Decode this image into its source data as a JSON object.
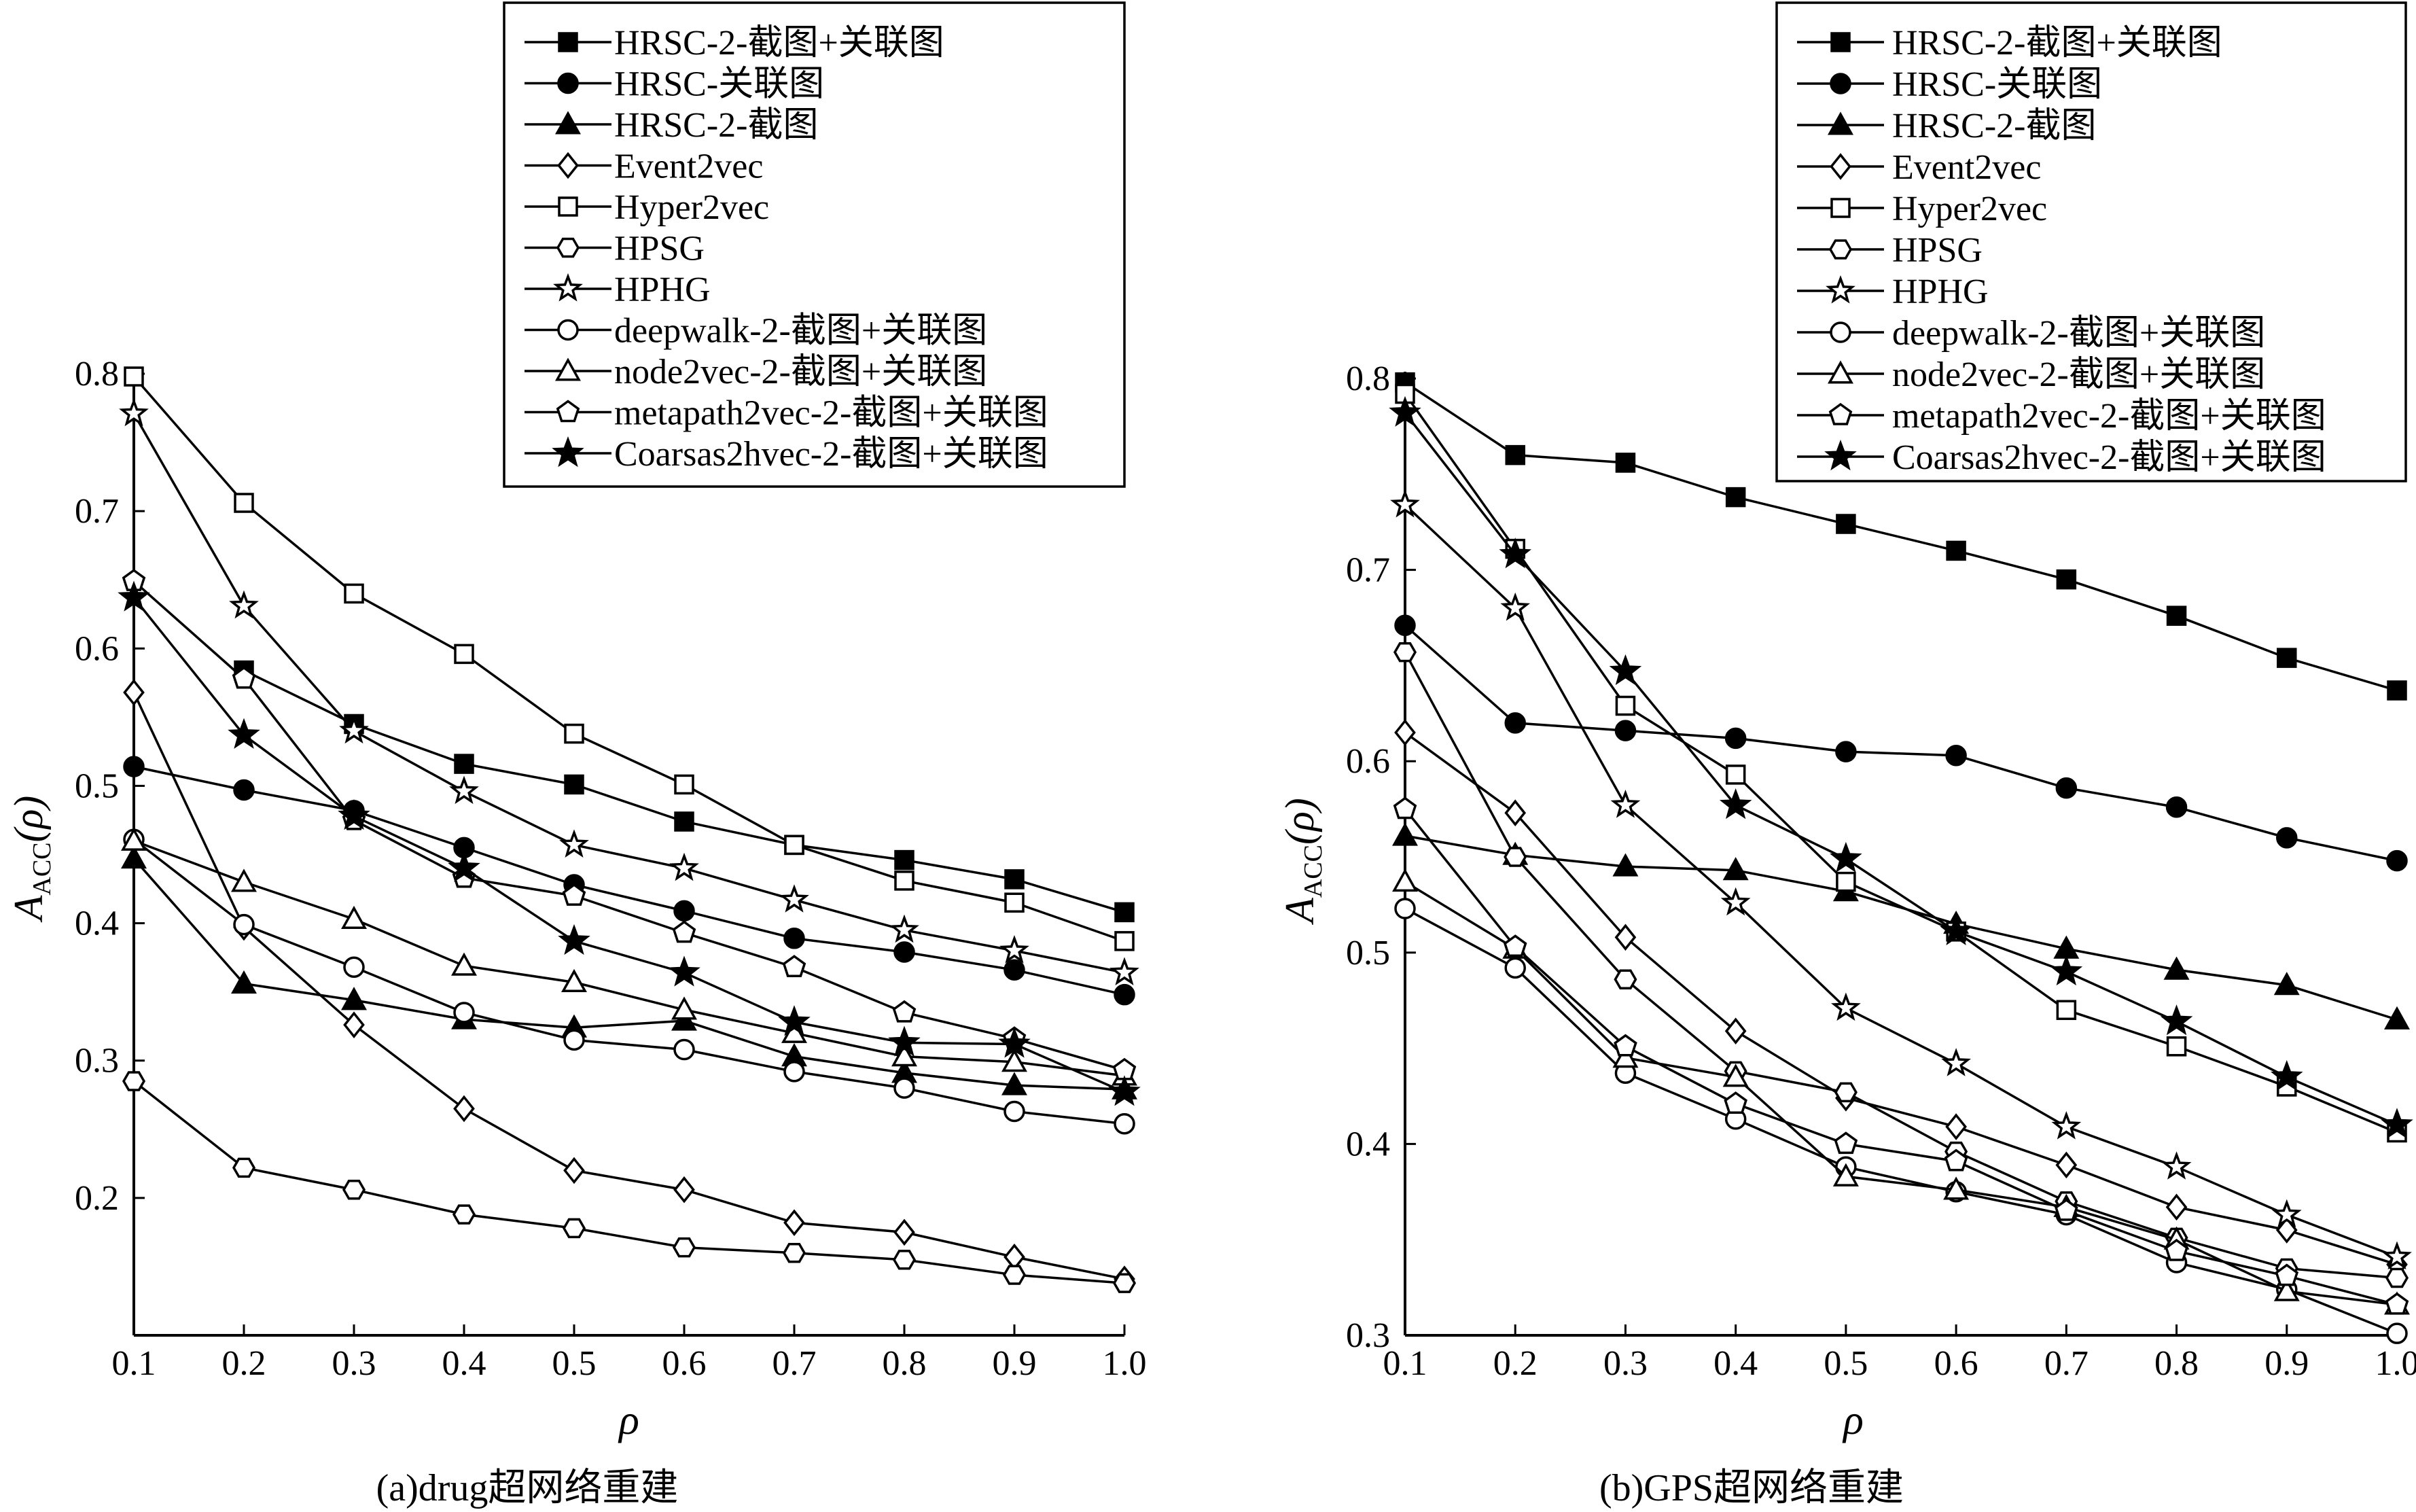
{
  "chart_data": [
    {
      "type": "line",
      "caption": "(a)drug超网络重建",
      "xlabel": "ρ",
      "ylabel": "A_ACC(ρ)",
      "ylabel_main": "A",
      "ylabel_sub": "ACC",
      "ylabel_arg": "(ρ)",
      "xlim": [
        0.1,
        1.0
      ],
      "ylim": [
        0.1,
        0.8
      ],
      "xticks": [
        "0.1",
        "0.2",
        "0.3",
        "0.4",
        "0.5",
        "0.6",
        "0.7",
        "0.8",
        "0.9",
        "1.0"
      ],
      "yticks": [
        "0.2",
        "0.3",
        "0.4",
        "0.5",
        "0.6",
        "0.7",
        "0.8"
      ],
      "grid": false,
      "legend_position": "top-right",
      "series": [
        {
          "name": "HRSC-2-截图+关联图",
          "marker": "square-filled",
          "x": [
            0.2,
            0.3,
            0.4,
            0.5,
            0.6,
            0.7,
            0.8,
            0.9,
            1.0
          ],
          "values": [
            0.584,
            0.545,
            0.516,
            0.501,
            0.474,
            0.457,
            0.446,
            0.432,
            0.408
          ]
        },
        {
          "name": "HRSC-关联图",
          "marker": "circle-filled",
          "x": [
            0.1,
            0.2,
            0.3,
            0.4,
            0.5,
            0.6,
            0.7,
            0.8,
            0.9,
            1.0
          ],
          "values": [
            0.514,
            0.497,
            0.482,
            0.455,
            0.428,
            0.409,
            0.389,
            0.379,
            0.366,
            0.348
          ]
        },
        {
          "name": "HRSC-2-截图",
          "marker": "triangle-filled",
          "x": [
            0.1,
            0.2,
            0.3,
            0.4,
            0.5,
            0.6,
            0.7,
            0.8,
            0.9,
            1.0
          ],
          "values": [
            0.447,
            0.356,
            0.344,
            0.33,
            0.324,
            0.329,
            0.303,
            0.291,
            0.282,
            0.279
          ]
        },
        {
          "name": "Event2vec",
          "marker": "diamond-open",
          "x": [
            0.1,
            0.2,
            0.3,
            0.4,
            0.5,
            0.6,
            0.7,
            0.8,
            0.9,
            1.0
          ],
          "values": [
            0.568,
            0.397,
            0.326,
            0.265,
            0.22,
            0.206,
            0.182,
            0.175,
            0.157,
            0.141
          ]
        },
        {
          "name": "Hyper2vec",
          "marker": "square-open",
          "x": [
            0.1,
            0.2,
            0.3,
            0.4,
            0.5,
            0.6,
            0.7,
            0.8,
            0.9,
            1.0
          ],
          "values": [
            0.798,
            0.706,
            0.64,
            0.596,
            0.538,
            0.501,
            0.457,
            0.431,
            0.415,
            0.387
          ]
        },
        {
          "name": "HPSG",
          "marker": "hexagon-open",
          "x": [
            0.1,
            0.2,
            0.3,
            0.4,
            0.5,
            0.6,
            0.7,
            0.8,
            0.9,
            1.0
          ],
          "values": [
            0.285,
            0.222,
            0.206,
            0.188,
            0.178,
            0.164,
            0.16,
            0.155,
            0.144,
            0.138
          ]
        },
        {
          "name": "HPHG",
          "marker": "star-open",
          "x": [
            0.1,
            0.2,
            0.3,
            0.4,
            0.5,
            0.6,
            0.7,
            0.8,
            0.9,
            1.0
          ],
          "values": [
            0.771,
            0.631,
            0.54,
            0.496,
            0.457,
            0.44,
            0.417,
            0.395,
            0.38,
            0.364
          ]
        },
        {
          "name": "deepwalk-2-截图+关联图",
          "marker": "circle-open",
          "x": [
            0.1,
            0.2,
            0.3,
            0.4,
            0.5,
            0.6,
            0.7,
            0.8,
            0.9,
            1.0
          ],
          "values": [
            0.461,
            0.399,
            0.368,
            0.335,
            0.315,
            0.308,
            0.292,
            0.28,
            0.263,
            0.254
          ]
        },
        {
          "name": "node2vec-2-截图+关联图",
          "marker": "triangle-open",
          "x": [
            0.1,
            0.2,
            0.3,
            0.4,
            0.5,
            0.6,
            0.7,
            0.8,
            0.9,
            1.0
          ],
          "values": [
            0.46,
            0.43,
            0.403,
            0.369,
            0.357,
            0.337,
            0.32,
            0.303,
            0.299,
            0.289
          ]
        },
        {
          "name": "metapath2vec-2-截图+关联图",
          "marker": "pentagon-open",
          "x": [
            0.1,
            0.2,
            0.3,
            0.4,
            0.5,
            0.6,
            0.7,
            0.8,
            0.9,
            1.0
          ],
          "values": [
            0.649,
            0.578,
            0.475,
            0.433,
            0.42,
            0.393,
            0.368,
            0.335,
            0.316,
            0.293
          ]
        },
        {
          "name": "Coarsas2hvec-2-截图+关联图",
          "marker": "star-filled",
          "x": [
            0.1,
            0.2,
            0.3,
            0.4,
            0.5,
            0.6,
            0.7,
            0.8,
            0.9,
            1.0
          ],
          "values": [
            0.637,
            0.537,
            0.478,
            0.44,
            0.387,
            0.364,
            0.328,
            0.313,
            0.312,
            0.277
          ]
        }
      ]
    },
    {
      "type": "line",
      "caption": "(b)GPS超网络重建",
      "xlabel": "ρ",
      "ylabel": "A_ACC(ρ)",
      "ylabel_main": "A",
      "ylabel_sub": "ACC",
      "ylabel_arg": "(ρ)",
      "xlim": [
        0.1,
        1.0
      ],
      "ylim": [
        0.3,
        0.8
      ],
      "xticks": [
        "0.1",
        "0.2",
        "0.3",
        "0.4",
        "0.5",
        "0.6",
        "0.7",
        "0.8",
        "0.9",
        "1.0"
      ],
      "yticks": [
        "0.3",
        "0.4",
        "0.5",
        "0.6",
        "0.7",
        "0.8"
      ],
      "grid": false,
      "legend_position": "top-right",
      "series": [
        {
          "name": "HRSC-2-截图+关联图",
          "marker": "square-filled",
          "x": [
            0.1,
            0.2,
            0.3,
            0.4,
            0.5,
            0.6,
            0.7,
            0.8,
            0.9,
            1.0
          ],
          "values": [
            0.798,
            0.76,
            0.756,
            0.738,
            0.724,
            0.71,
            0.695,
            0.676,
            0.654,
            0.637
          ]
        },
        {
          "name": "HRSC-关联图",
          "marker": "circle-filled",
          "x": [
            0.1,
            0.2,
            0.3,
            0.4,
            0.5,
            0.6,
            0.7,
            0.8,
            0.9,
            1.0
          ],
          "values": [
            0.671,
            0.62,
            0.616,
            0.612,
            0.605,
            0.603,
            0.586,
            0.576,
            0.56,
            0.548
          ]
        },
        {
          "name": "HRSC-2-截图",
          "marker": "triangle-filled",
          "x": [
            0.1,
            0.2,
            0.3,
            0.4,
            0.5,
            0.6,
            0.7,
            0.8,
            0.9,
            1.0
          ],
          "values": [
            0.561,
            0.551,
            0.545,
            0.543,
            0.532,
            0.515,
            0.502,
            0.491,
            0.483,
            0.465
          ]
        },
        {
          "name": "Event2vec",
          "marker": "diamond-open",
          "x": [
            0.1,
            0.2,
            0.3,
            0.4,
            0.5,
            0.6,
            0.7,
            0.8,
            0.9,
            1.0
          ],
          "values": [
            0.615,
            0.573,
            0.508,
            0.459,
            0.424,
            0.409,
            0.389,
            0.367,
            0.355,
            0.337
          ]
        },
        {
          "name": "Hyper2vec",
          "marker": "square-open",
          "x": [
            0.1,
            0.2,
            0.3,
            0.4,
            0.5,
            0.6,
            0.7,
            0.8,
            0.9,
            1.0
          ],
          "values": [
            0.792,
            0.711,
            0.629,
            0.593,
            0.537,
            0.511,
            0.47,
            0.451,
            0.43,
            0.406
          ]
        },
        {
          "name": "HPSG",
          "marker": "hexagon-open",
          "x": [
            0.1,
            0.2,
            0.3,
            0.4,
            0.5,
            0.6,
            0.7,
            0.8,
            0.9,
            1.0
          ],
          "values": [
            0.657,
            0.55,
            0.486,
            0.438,
            0.427,
            0.396,
            0.37,
            0.351,
            0.335,
            0.33
          ]
        },
        {
          "name": "HPHG",
          "marker": "star-open",
          "x": [
            0.1,
            0.2,
            0.3,
            0.4,
            0.5,
            0.6,
            0.7,
            0.8,
            0.9,
            1.0
          ],
          "values": [
            0.734,
            0.68,
            0.577,
            0.526,
            0.471,
            0.442,
            0.409,
            0.388,
            0.363,
            0.341
          ]
        },
        {
          "name": "deepwalk-2-截图+关联图",
          "marker": "circle-open",
          "x": [
            0.1,
            0.2,
            0.3,
            0.4,
            0.5,
            0.6,
            0.7,
            0.8,
            0.9,
            1.0
          ],
          "values": [
            0.523,
            0.492,
            0.437,
            0.413,
            0.388,
            0.375,
            0.363,
            0.338,
            0.324,
            0.301
          ]
        },
        {
          "name": "node2vec-2-截图+关联图",
          "marker": "triangle-open",
          "x": [
            0.1,
            0.2,
            0.3,
            0.4,
            0.5,
            0.6,
            0.7,
            0.8,
            0.9,
            1.0
          ],
          "values": [
            0.537,
            0.502,
            0.445,
            0.435,
            0.383,
            0.376,
            0.367,
            0.35,
            0.323,
            0.316
          ]
        },
        {
          "name": "metapath2vec-2-截图+关联图",
          "marker": "pentagon-open",
          "x": [
            0.1,
            0.2,
            0.3,
            0.4,
            0.5,
            0.6,
            0.7,
            0.8,
            0.9,
            1.0
          ],
          "values": [
            0.575,
            0.503,
            0.451,
            0.421,
            0.4,
            0.391,
            0.365,
            0.344,
            0.331,
            0.316
          ]
        },
        {
          "name": "Coarsas2hvec-2-截图+关联图",
          "marker": "star-filled",
          "x": [
            0.1,
            0.2,
            0.3,
            0.4,
            0.5,
            0.6,
            0.7,
            0.8,
            0.9,
            1.0
          ],
          "values": [
            0.782,
            0.708,
            0.647,
            0.577,
            0.549,
            0.511,
            0.49,
            0.464,
            0.435,
            0.41
          ]
        }
      ]
    }
  ]
}
